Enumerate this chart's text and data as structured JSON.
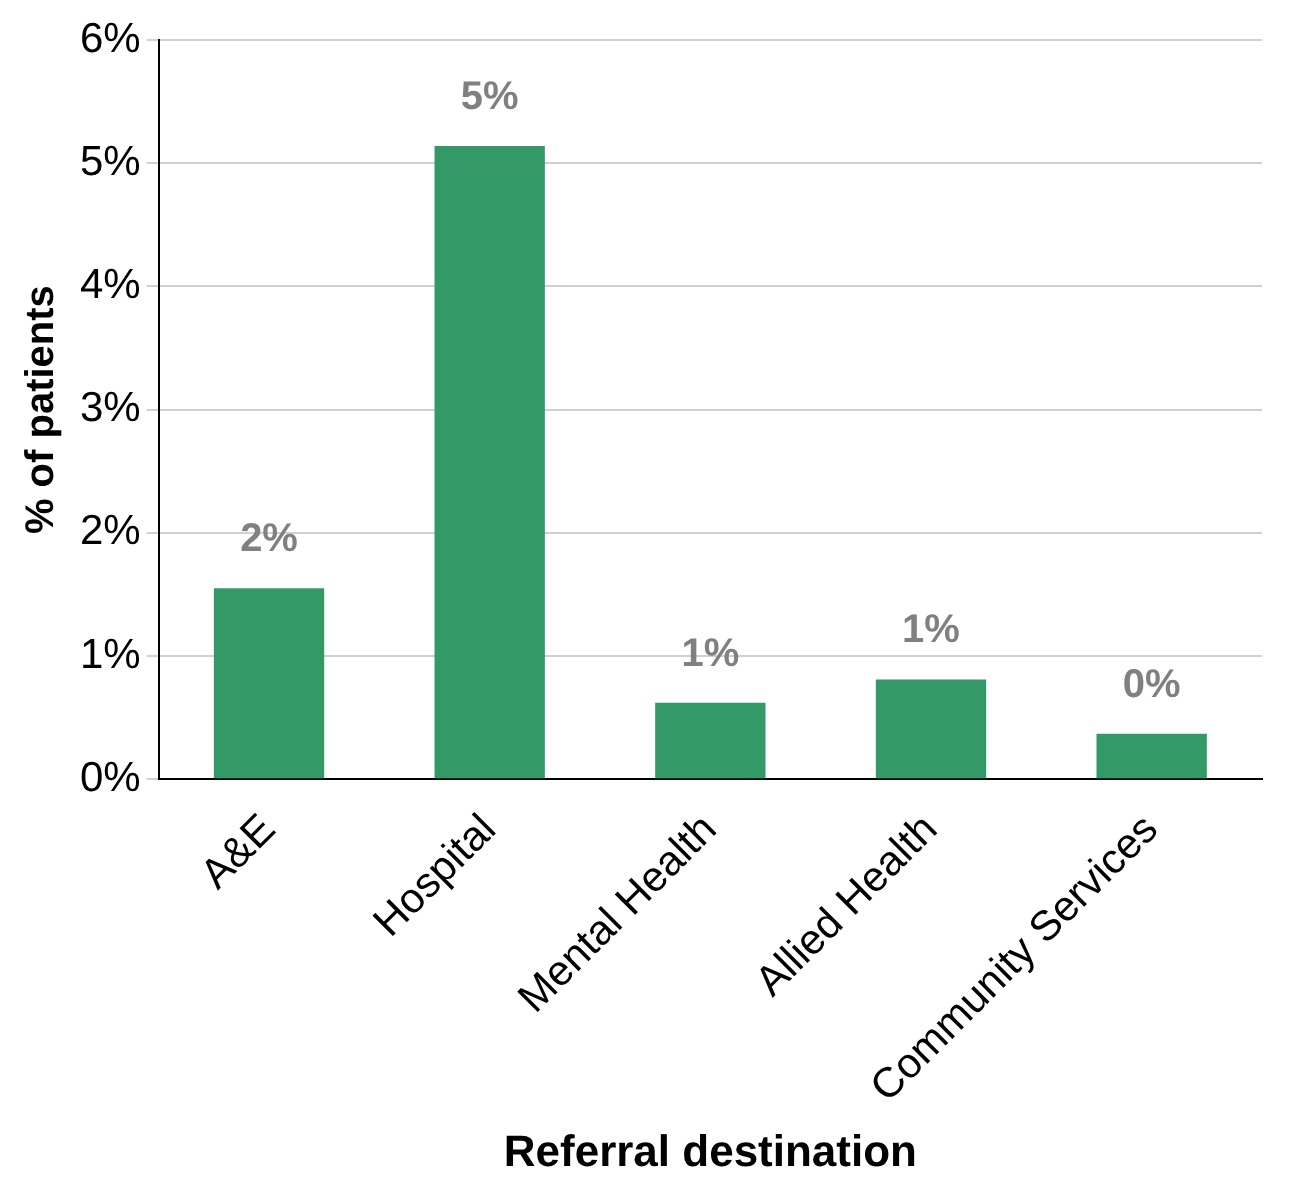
{
  "chart_data": {
    "type": "bar",
    "xlabel": "Referral destination",
    "ylabel": "% of patients",
    "categories": [
      "A&E",
      "Hospital",
      "Mental Health",
      "Allied Health",
      "Community Services"
    ],
    "values": [
      1.55,
      5.14,
      0.62,
      0.81,
      0.37
    ],
    "value_labels": [
      "2%",
      "5%",
      "1%",
      "1%",
      "0%"
    ],
    "color": "#339966",
    "ylim": [
      0,
      6
    ],
    "yticks": [
      {
        "value": 0,
        "label": "0%"
      },
      {
        "value": 1,
        "label": "1%"
      },
      {
        "value": 2,
        "label": "2%"
      },
      {
        "value": 3,
        "label": "3%"
      },
      {
        "value": 4,
        "label": "4%"
      },
      {
        "value": 5,
        "label": "5%"
      },
      {
        "value": 6,
        "label": "6%"
      }
    ],
    "grid": "y",
    "legend": false
  }
}
